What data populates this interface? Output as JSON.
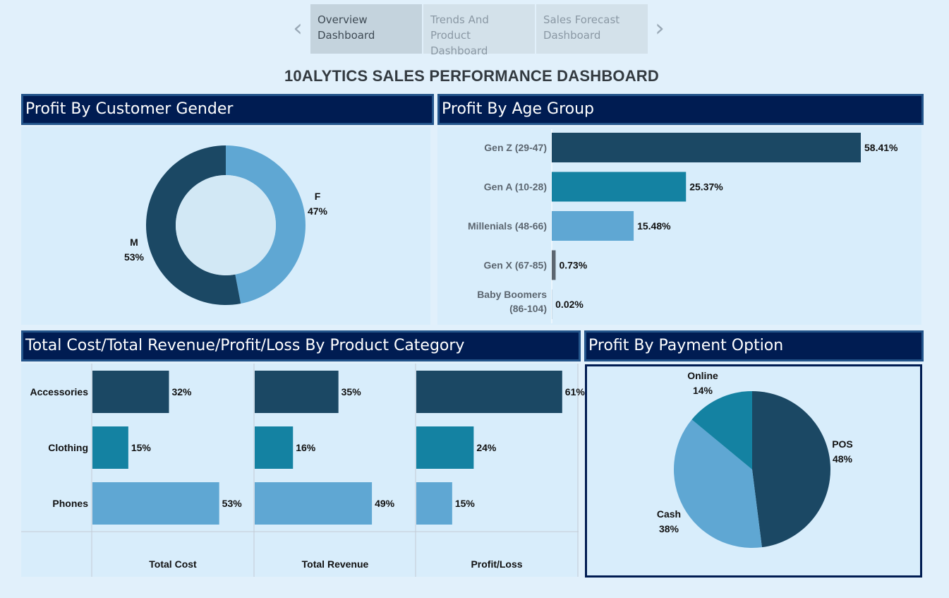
{
  "tabs": [
    {
      "line1": "Overview",
      "line2": "Dashboard"
    },
    {
      "line1": "Trends And Product",
      "line2": "Dashboard"
    },
    {
      "line1": "Sales Forecast",
      "line2": "Dashboard"
    }
  ],
  "nav": {
    "prev": "‹",
    "next": "›"
  },
  "title": "10ALYTICS SALES PERFORMANCE DASHBOARD",
  "panels": {
    "gender": "Profit By Customer Gender",
    "age": "Profit By Age Group",
    "category": "Total Cost/Total Revenue/Profit/Loss By Product Category",
    "payment": "Profit By Payment Option"
  },
  "colors": {
    "dark": "#1b4864",
    "teal": "#1482a2",
    "light": "#5fa7d3",
    "grey": "#5c6670",
    "header": "#001c52"
  },
  "chart_data": [
    {
      "id": "gender",
      "type": "pie",
      "donut": true,
      "slices": [
        {
          "label": "F",
          "percent": "47%",
          "value": 47,
          "color": "#5fa7d3"
        },
        {
          "label": "M",
          "percent": "53%",
          "value": 53,
          "color": "#1b4864"
        }
      ]
    },
    {
      "id": "age",
      "type": "bar",
      "orientation": "horizontal",
      "categories": [
        "Gen Z (29-47)",
        "Gen A (10-28)",
        "Millenials (48-66)",
        "Gen X (67-85)",
        "Baby Boomers (86-104)"
      ],
      "values": [
        58.41,
        25.37,
        15.48,
        0.73,
        0.02
      ],
      "labels": [
        "58.41%",
        "25.37%",
        "15.48%",
        "0.73%",
        "0.02%"
      ],
      "colors": [
        "#1b4864",
        "#1482a2",
        "#5fa7d3",
        "#5c6670",
        "#1b4864"
      ]
    },
    {
      "id": "category",
      "type": "bar",
      "orientation": "horizontal",
      "categories": [
        "Accessories",
        "Clothing",
        "Phones"
      ],
      "colors": [
        "#1b4864",
        "#1482a2",
        "#5fa7d3"
      ],
      "series": [
        {
          "name": "Total Cost",
          "values": [
            32,
            15,
            53
          ],
          "labels": [
            "32%",
            "15%",
            "53%"
          ]
        },
        {
          "name": "Total Revenue",
          "values": [
            35,
            16,
            49
          ],
          "labels": [
            "35%",
            "16%",
            "49%"
          ]
        },
        {
          "name": "Profit/Loss",
          "values": [
            61,
            24,
            15
          ],
          "labels": [
            "61%",
            "24%",
            "15%"
          ]
        }
      ]
    },
    {
      "id": "payment",
      "type": "pie",
      "slices": [
        {
          "label": "POS",
          "percent": "48%",
          "value": 48,
          "color": "#1b4864"
        },
        {
          "label": "Cash",
          "percent": "38%",
          "value": 38,
          "color": "#5fa7d3"
        },
        {
          "label": "Online",
          "percent": "14%",
          "value": 14,
          "color": "#1482a2"
        }
      ]
    }
  ]
}
